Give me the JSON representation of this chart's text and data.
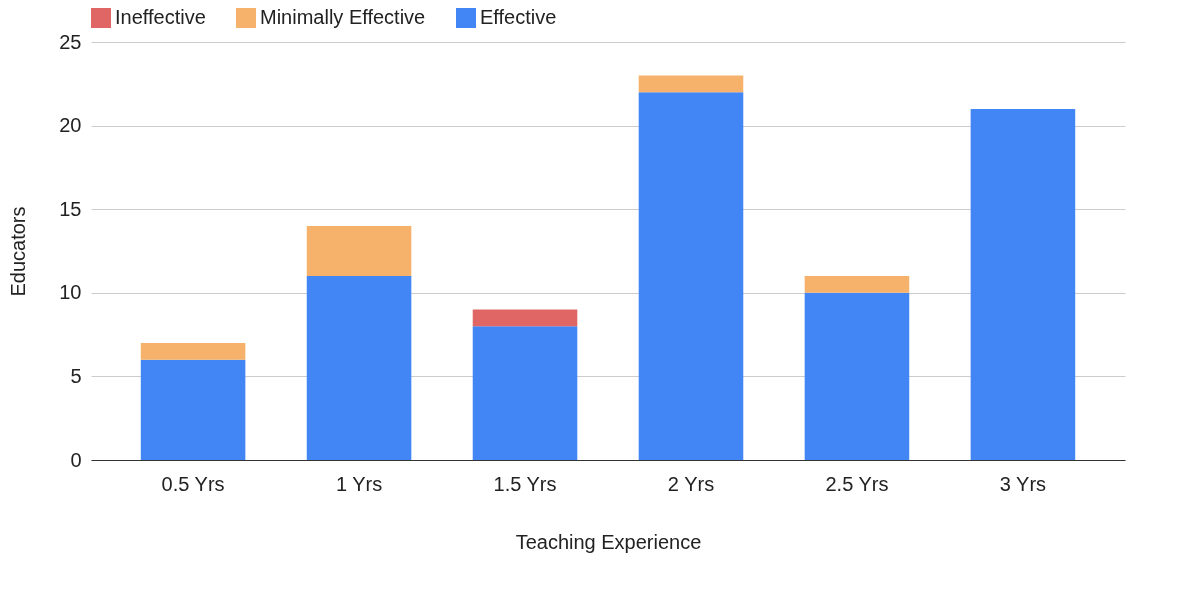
{
  "chart_data": {
    "type": "bar",
    "stacked": true,
    "xlabel": "Teaching Experience",
    "ylabel": "Educators",
    "categories": [
      "0.5 Yrs",
      "1 Yrs",
      "1.5 Yrs",
      "2 Yrs",
      "2.5 Yrs",
      "3 Yrs"
    ],
    "series": [
      {
        "name": "Effective",
        "color": "#4285f4",
        "values": [
          6,
          11,
          8,
          22,
          10,
          21
        ]
      },
      {
        "name": "Minimally Effective",
        "color": "#f6b26b",
        "values": [
          1,
          3,
          0,
          1,
          1,
          0
        ]
      },
      {
        "name": "Ineffective",
        "color": "#e06666",
        "values": [
          0,
          0,
          1,
          0,
          0,
          0
        ]
      }
    ],
    "ylim": [
      0,
      25
    ],
    "yticks": [
      0,
      5,
      10,
      15,
      20,
      25
    ],
    "grid": "y",
    "legend": "top"
  }
}
